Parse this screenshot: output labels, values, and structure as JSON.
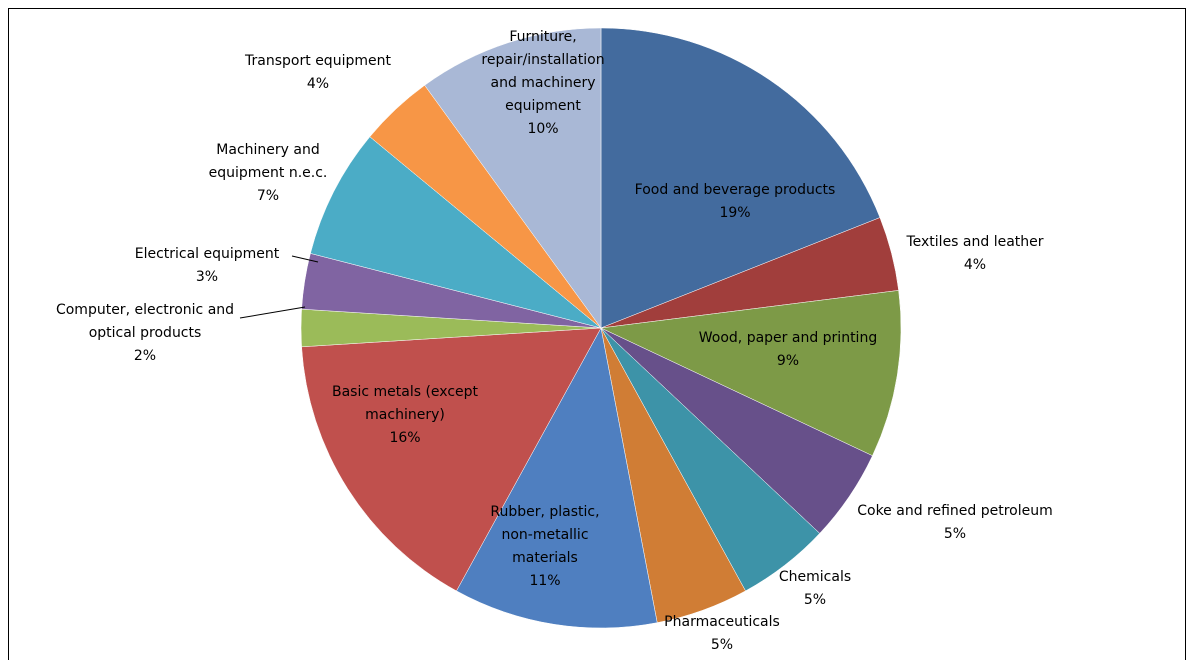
{
  "chart_data": {
    "type": "pie",
    "categories": [
      "Food and beverage products",
      "Textiles and leather",
      "Wood, paper and printing",
      "Coke and refined petroleum",
      "Chemicals",
      "Pharmaceuticals",
      "Rubber, plastic, non-metallic materials",
      "Basic metals (except machinery)",
      "Computer, electronic and optical products",
      "Electrical equipment",
      "Machinery and equipment n.e.c.",
      "Transport equipment",
      "Furniture, repair/installation and machinery equipment"
    ],
    "values": [
      19,
      4,
      9,
      5,
      5,
      5,
      11,
      16,
      2,
      3,
      7,
      4,
      10
    ],
    "value_labels": [
      "19%",
      "4%",
      "9%",
      "5%",
      "5%",
      "5%",
      "11%",
      "16%",
      "2%",
      "3%",
      "7%",
      "4%",
      "10%"
    ],
    "colors": [
      "#436b9e",
      "#a13e3c",
      "#7d9a47",
      "#67508a",
      "#3d93a8",
      "#d07d35",
      "#4f7fc0",
      "#c0504d",
      "#9bbb59",
      "#8064a2",
      "#4bacc6",
      "#f79646",
      "#a9b8d6"
    ]
  }
}
